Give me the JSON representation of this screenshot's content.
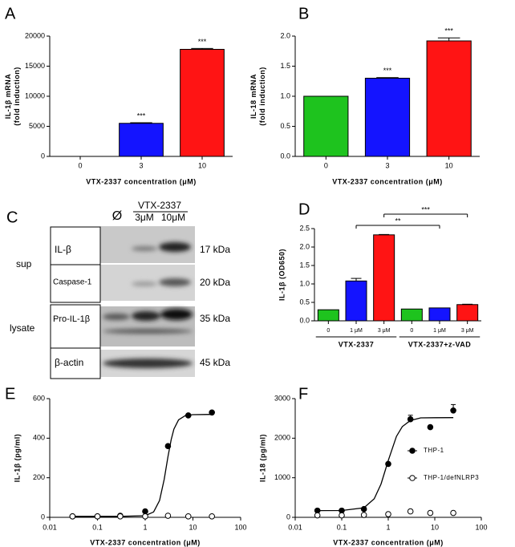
{
  "chart_data": [
    {
      "type": "bar",
      "label": "A",
      "ylabel": [
        "IL-1β mRNA",
        "(fold induction)"
      ],
      "xlabel": "VTX-2337 concentration (μM)",
      "categories": [
        "0",
        "3",
        "10"
      ],
      "values": [
        1,
        5500,
        17800
      ],
      "errors": [
        0,
        100,
        150
      ],
      "colors": [
        "#1ec31e",
        "#1414ff",
        "#ff1414"
      ],
      "significance": [
        null,
        "***",
        "***"
      ],
      "ylim": [
        0,
        20000
      ],
      "yticks": [
        0,
        5000,
        10000,
        15000,
        20000
      ]
    },
    {
      "type": "bar",
      "label": "B",
      "ylabel": [
        "IL-18 mRNA",
        "(fold induction)"
      ],
      "xlabel": "VTX-2337 concentration (μM)",
      "categories": [
        "0",
        "3",
        "10"
      ],
      "values": [
        1.0,
        1.3,
        1.92
      ],
      "errors": [
        0,
        0.01,
        0.05
      ],
      "colors": [
        "#1ec31e",
        "#1414ff",
        "#ff1414"
      ],
      "significance": [
        null,
        "***",
        "***"
      ],
      "ylim": [
        0,
        2.0
      ],
      "yticks": [
        {
          "value": 0,
          "label": "0.0"
        },
        {
          "value": 0.5,
          "label": "0.5"
        },
        {
          "value": 1,
          "label": "1.0"
        },
        {
          "value": 1.5,
          "label": "1.5"
        },
        {
          "value": 2,
          "label": "2.0"
        }
      ]
    },
    {
      "type": "bar",
      "label": "D",
      "ylabel": [
        "IL-1β (OD650)"
      ],
      "categories": [
        "0",
        "1 μM",
        "3 μM",
        "0",
        "1 μM",
        "3 μM"
      ],
      "values": [
        0.3,
        1.08,
        2.33,
        0.32,
        0.35,
        0.44
      ],
      "errors": [
        0,
        0.07,
        0.01,
        0,
        0,
        0.01
      ],
      "colors": [
        "#1ec31e",
        "#1414ff",
        "#ff1414",
        "#1ec31e",
        "#1414ff",
        "#ff1414"
      ],
      "groups": [
        {
          "label": "VTX-2337",
          "span": [
            0,
            2
          ]
        },
        {
          "label": "VTX-2337+z-VAD",
          "span": [
            3,
            5
          ]
        }
      ],
      "brackets": [
        {
          "from": 1,
          "to": 4,
          "text": "**"
        },
        {
          "from": 2,
          "to": 5,
          "text": "***"
        }
      ],
      "ylim": [
        0,
        2.5
      ],
      "yticks": [
        {
          "value": 0,
          "label": "0.0"
        },
        {
          "value": 0.5,
          "label": "0.5"
        },
        {
          "value": 1,
          "label": "1.0"
        },
        {
          "value": 1.5,
          "label": "1.5"
        },
        {
          "value": 2,
          "label": "2.0"
        },
        {
          "value": 2.5,
          "label": "2.5"
        }
      ]
    },
    {
      "type": "scatter",
      "label": "E",
      "ylabel": [
        "IL-1β (pg/ml)"
      ],
      "xlabel": "VTX-2337 concentration (μM)",
      "xlog": true,
      "xlim": [
        0.01,
        100
      ],
      "xticks": [
        0.01,
        0.1,
        1,
        10,
        100
      ],
      "ylim": [
        0,
        600
      ],
      "yticks": [
        0,
        200,
        400,
        600
      ],
      "series": [
        {
          "marker": "filled",
          "x": [
            0.03,
            0.1,
            0.3,
            1,
            3,
            8,
            25
          ],
          "values": [
            5,
            5,
            8,
            30,
            360,
            515,
            530
          ]
        },
        {
          "marker": "open",
          "x": [
            0.03,
            0.1,
            0.3,
            1,
            3,
            8,
            25
          ],
          "values": [
            5,
            5,
            5,
            5,
            8,
            5,
            5
          ]
        }
      ],
      "fit": [
        {
          "x": [
            0.03,
            0.3,
            1,
            1.5,
            2,
            2.5,
            3,
            3.5,
            4,
            5,
            7,
            10,
            25
          ],
          "values": [
            5,
            5,
            8,
            27,
            85,
            192,
            307,
            393,
            446,
            493,
            515,
            519,
            520
          ]
        }
      ]
    },
    {
      "type": "scatter",
      "label": "F",
      "ylabel": [
        "IL-18 (pg/ml)"
      ],
      "xlabel": "VTX-2337 concentration (μM)",
      "xlog": true,
      "legend": "right",
      "xlim": [
        0.01,
        100
      ],
      "xticks": [
        0.01,
        0.1,
        1,
        10,
        100
      ],
      "ylim": [
        0,
        3000
      ],
      "yticks": [
        0,
        1000,
        2000,
        3000
      ],
      "series": [
        {
          "name": "THP-1",
          "marker": "filled",
          "x": [
            0.03,
            0.1,
            0.3,
            1,
            3,
            8,
            25
          ],
          "values": [
            170,
            170,
            210,
            1350,
            2480,
            2280,
            2700
          ],
          "errors": [
            0,
            0,
            0,
            0,
            100,
            0,
            150
          ]
        },
        {
          "name": "THP-1/defNLRP3",
          "marker": "open",
          "x": [
            0.03,
            0.1,
            0.3,
            1,
            3,
            8,
            25
          ],
          "values": [
            50,
            50,
            60,
            80,
            150,
            110,
            110
          ]
        }
      ],
      "fit": [
        {
          "x": [
            0.03,
            0.1,
            0.3,
            0.5,
            0.7,
            1,
            1.5,
            2,
            3,
            5,
            10,
            25
          ],
          "values": [
            170,
            172,
            242,
            469,
            841,
            1435,
            2045,
            2293,
            2448,
            2513,
            2518,
            2520
          ]
        }
      ]
    }
  ],
  "blot": {
    "label": "C",
    "header": "VTX-2337",
    "lanes": [
      "Ø",
      "3μM",
      "10μM"
    ],
    "groups": [
      "sup",
      "lysate"
    ],
    "rows": [
      {
        "label": "IL-β",
        "kda": "17 kDa"
      },
      {
        "label": "Caspase-1",
        "kda": "20 kDa"
      },
      {
        "label": "Pro-IL-1β",
        "kda": "35 kDa"
      },
      {
        "label": "β-actin",
        "kda": "45 kDa"
      }
    ]
  }
}
